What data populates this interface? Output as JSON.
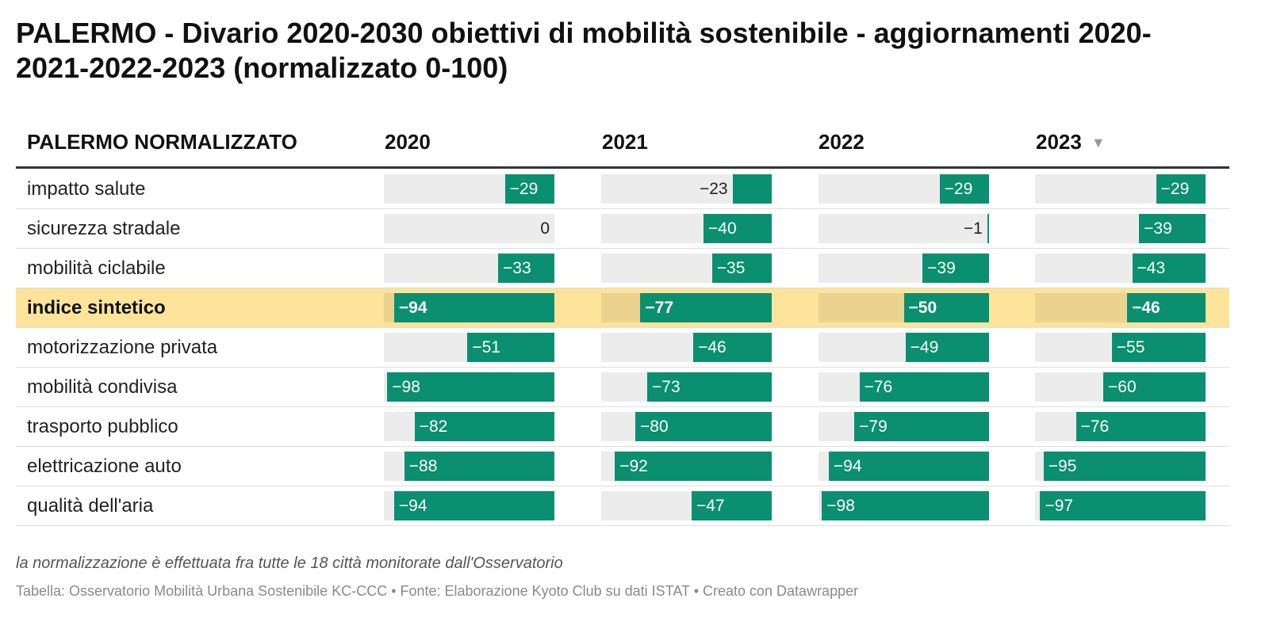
{
  "title": "PALERMO - Divario 2020-2030 obiettivi di mobilità sostenibile - aggiornamenti 2020-2021-2022-2023 (normalizzato 0-100)",
  "header": {
    "label": "PALERMO NORMALIZZATO",
    "sort_icon": "▼"
  },
  "colors": {
    "bar": "#0a9070",
    "track": "#ececec",
    "highlight": "#fde49a"
  },
  "chart_data": {
    "type": "table",
    "columns": [
      "2020",
      "2021",
      "2022",
      "2023"
    ],
    "sorted_by": "2023",
    "highlighted_row": "indice sintetico",
    "rows": [
      {
        "label": "impatto salute",
        "values": [
          -29,
          -23,
          -29,
          -29
        ],
        "display": [
          "−29",
          "−23",
          "−29",
          "−29"
        ]
      },
      {
        "label": "sicurezza stradale",
        "values": [
          0,
          -40,
          -1,
          -39
        ],
        "display": [
          "0",
          "−40",
          "−1",
          "−39"
        ]
      },
      {
        "label": "mobilità ciclabile",
        "values": [
          -33,
          -35,
          -39,
          -43
        ],
        "display": [
          "−33",
          "−35",
          "−39",
          "−43"
        ]
      },
      {
        "label": "indice sintetico",
        "values": [
          -94,
          -77,
          -50,
          -46
        ],
        "display": [
          "−94",
          "−77",
          "−50",
          "−46"
        ]
      },
      {
        "label": "motorizzazione privata",
        "values": [
          -51,
          -46,
          -49,
          -55
        ],
        "display": [
          "−51",
          "−46",
          "−49",
          "−55"
        ]
      },
      {
        "label": "mobilità condivisa",
        "values": [
          -98,
          -73,
          -76,
          -60
        ],
        "display": [
          "−98",
          "−73",
          "−76",
          "−60"
        ]
      },
      {
        "label": "trasporto pubblico",
        "values": [
          -82,
          -80,
          -79,
          -76
        ],
        "display": [
          "−82",
          "−80",
          "−79",
          "−76"
        ]
      },
      {
        "label": "elettricazione auto",
        "values": [
          -88,
          -92,
          -94,
          -95
        ],
        "display": [
          "−88",
          "−92",
          "−94",
          "−95"
        ]
      },
      {
        "label": "qualità dell'aria",
        "values": [
          -94,
          -47,
          -98,
          -97
        ],
        "display": [
          "−94",
          "−47",
          "−98",
          "−97"
        ]
      }
    ]
  },
  "note": "la normalizzazione è effettuata fra tutte le 18 città monitorate dall'Osservatorio",
  "footer": "Tabella: Osservatorio Mobilità Urbana Sostenibile KC-CCC • Fonte: Elaborazione Kyoto Club su dati ISTAT • Creato con Datawrapper"
}
